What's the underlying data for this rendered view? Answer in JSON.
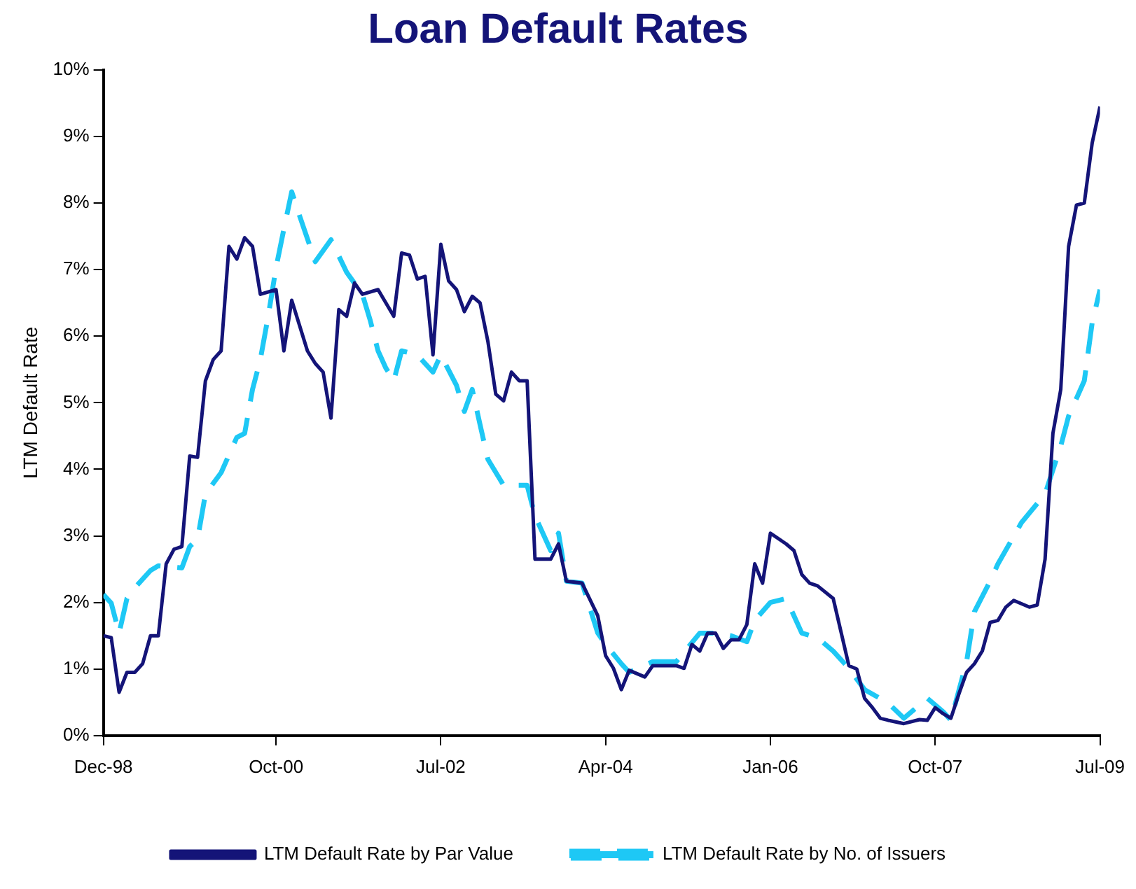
{
  "chart_data": {
    "type": "line",
    "title": "Loan Default Rates",
    "ylabel": "LTM Default Rate",
    "xlim": [
      "1998-12",
      "2009-07"
    ],
    "xticks": [
      {
        "value": "1998-12",
        "label": "Dec-98"
      },
      {
        "value": "2000-10",
        "label": "Oct-00"
      },
      {
        "value": "2002-07",
        "label": "Jul-02"
      },
      {
        "value": "2004-04",
        "label": "Apr-04"
      },
      {
        "value": "2006-01",
        "label": "Jan-06"
      },
      {
        "value": "2007-10",
        "label": "Oct-07"
      },
      {
        "value": "2009-07",
        "label": "Jul-09"
      }
    ],
    "ylim": [
      0,
      10
    ],
    "yticks": [
      {
        "value": 0,
        "label": "0%"
      },
      {
        "value": 1,
        "label": "1%"
      },
      {
        "value": 2,
        "label": "2%"
      },
      {
        "value": 3,
        "label": "3%"
      },
      {
        "value": 4,
        "label": "4%"
      },
      {
        "value": 5,
        "label": "5%"
      },
      {
        "value": 6,
        "label": "6%"
      },
      {
        "value": 7,
        "label": "7%"
      },
      {
        "value": 8,
        "label": "8%"
      },
      {
        "value": 9,
        "label": "9%"
      },
      {
        "value": 10,
        "label": "10%"
      }
    ],
    "grid": false,
    "legend": "bottom",
    "marker": "none",
    "series": [
      {
        "name": "LTM Default Rate by Par Value",
        "color": "#141478",
        "line_style": "solid",
        "x": [
          "1998-12",
          "1999-01",
          "1999-02",
          "1999-03",
          "1999-04",
          "1999-05",
          "1999-06",
          "1999-07",
          "1999-08",
          "1999-09",
          "1999-10",
          "1999-11",
          "1999-12",
          "2000-01",
          "2000-02",
          "2000-03",
          "2000-04",
          "2000-05",
          "2000-06",
          "2000-07",
          "2000-08",
          "2000-10",
          "2000-11",
          "2000-12",
          "2001-02",
          "2001-03",
          "2001-04",
          "2001-05",
          "2001-06",
          "2001-07",
          "2001-08",
          "2001-09",
          "2001-11",
          "2002-01",
          "2002-02",
          "2002-03",
          "2002-04",
          "2002-05",
          "2002-06",
          "2002-07",
          "2002-08",
          "2002-09",
          "2002-10",
          "2002-11",
          "2002-12",
          "2003-01",
          "2003-02",
          "2003-03",
          "2003-04",
          "2003-05",
          "2003-06",
          "2003-07",
          "2003-09",
          "2003-10",
          "2003-11",
          "2004-01",
          "2004-03",
          "2004-04",
          "2004-05",
          "2004-06",
          "2004-07",
          "2004-09",
          "2004-10",
          "2005-01",
          "2005-02",
          "2005-03",
          "2005-04",
          "2005-05",
          "2005-06",
          "2005-07",
          "2005-08",
          "2005-09",
          "2005-10",
          "2005-11",
          "2005-12",
          "2006-01",
          "2006-03",
          "2006-04",
          "2006-05",
          "2006-06",
          "2006-07",
          "2006-09",
          "2006-11",
          "2006-12",
          "2007-01",
          "2007-02",
          "2007-03",
          "2007-04",
          "2007-06",
          "2007-08",
          "2007-09",
          "2007-10",
          "2007-11",
          "2007-12",
          "2008-01",
          "2008-02",
          "2008-03",
          "2008-04",
          "2008-05",
          "2008-06",
          "2008-07",
          "2008-08",
          "2008-10",
          "2008-11",
          "2008-12",
          "2009-01",
          "2009-02",
          "2009-03",
          "2009-04",
          "2009-05",
          "2009-06",
          "2009-07"
        ],
        "values": [
          1.5,
          1.47,
          0.65,
          0.95,
          0.95,
          1.08,
          1.5,
          1.5,
          2.58,
          2.8,
          2.84,
          4.2,
          4.18,
          5.33,
          5.65,
          5.78,
          7.35,
          7.16,
          7.48,
          7.35,
          6.63,
          6.7,
          5.78,
          6.54,
          5.78,
          5.59,
          5.46,
          4.77,
          6.4,
          6.3,
          6.8,
          6.63,
          6.7,
          6.3,
          7.25,
          7.22,
          6.86,
          6.9,
          5.72,
          7.38,
          6.83,
          6.7,
          6.37,
          6.6,
          6.5,
          5.92,
          5.13,
          5.03,
          5.46,
          5.33,
          5.33,
          2.65,
          2.65,
          2.88,
          2.32,
          2.29,
          1.8,
          1.2,
          1.01,
          0.69,
          0.98,
          0.88,
          1.05,
          1.05,
          1.01,
          1.37,
          1.27,
          1.54,
          1.54,
          1.31,
          1.44,
          1.44,
          1.67,
          2.58,
          2.29,
          3.04,
          2.88,
          2.78,
          2.42,
          2.29,
          2.25,
          2.06,
          1.05,
          1.0,
          0.56,
          0.42,
          0.26,
          0.23,
          0.18,
          0.24,
          0.23,
          0.42,
          0.33,
          0.26,
          0.62,
          0.95,
          1.08,
          1.27,
          1.7,
          1.73,
          1.93,
          2.03,
          1.93,
          1.96,
          2.65,
          4.54,
          5.2,
          7.35,
          7.97,
          8.0,
          8.9,
          9.45
        ]
      },
      {
        "name": "LTM Default Rate by No. of Issuers",
        "color": "#1ec8f5",
        "line_style": "dashed",
        "x": [
          "1998-12",
          "1999-01",
          "1999-02",
          "1999-03",
          "1999-04",
          "1999-06",
          "1999-07",
          "1999-10",
          "1999-11",
          "1999-12",
          "2000-01",
          "2000-03",
          "2000-05",
          "2000-06",
          "2000-07",
          "2000-08",
          "2000-09",
          "2000-10",
          "2000-11",
          "2000-12",
          "2001-01",
          "2001-03",
          "2001-05",
          "2001-07",
          "2001-09",
          "2001-10",
          "2001-11",
          "2001-12",
          "2002-01",
          "2002-02",
          "2002-04",
          "2002-06",
          "2002-07",
          "2002-09",
          "2002-10",
          "2002-11",
          "2002-12",
          "2003-01",
          "2003-03",
          "2003-06",
          "2003-07",
          "2003-09",
          "2003-10",
          "2003-11",
          "2004-01",
          "2004-03",
          "2004-04",
          "2004-06",
          "2004-07",
          "2004-10",
          "2005-01",
          "2005-04",
          "2005-06",
          "2005-08",
          "2005-10",
          "2005-11",
          "2006-01",
          "2006-03",
          "2006-05",
          "2006-07",
          "2006-09",
          "2006-11",
          "2007-01",
          "2007-04",
          "2007-06",
          "2007-07",
          "2007-09",
          "2007-11",
          "2007-12",
          "2008-02",
          "2008-03",
          "2008-05",
          "2008-06",
          "2008-09",
          "2008-12",
          "2009-02",
          "2009-03",
          "2009-05",
          "2009-06",
          "2009-07"
        ],
        "values": [
          2.12,
          1.99,
          1.54,
          2.06,
          2.22,
          2.48,
          2.55,
          2.52,
          2.84,
          2.95,
          3.63,
          3.95,
          4.48,
          4.54,
          5.2,
          5.65,
          6.3,
          7.03,
          7.61,
          8.17,
          7.81,
          7.12,
          7.45,
          6.96,
          6.63,
          6.24,
          5.78,
          5.52,
          5.33,
          5.78,
          5.72,
          5.46,
          5.72,
          5.26,
          4.87,
          5.2,
          4.67,
          4.15,
          3.76,
          3.76,
          3.3,
          2.78,
          3.04,
          2.32,
          2.29,
          1.54,
          1.37,
          1.08,
          0.95,
          1.11,
          1.11,
          1.54,
          1.54,
          1.5,
          1.41,
          1.73,
          2.0,
          2.06,
          1.54,
          1.47,
          1.27,
          1.01,
          0.69,
          0.49,
          0.26,
          0.36,
          0.56,
          0.36,
          0.23,
          1.11,
          1.86,
          2.32,
          2.58,
          3.2,
          3.63,
          4.35,
          4.8,
          5.33,
          6.2,
          6.7
        ]
      }
    ]
  }
}
